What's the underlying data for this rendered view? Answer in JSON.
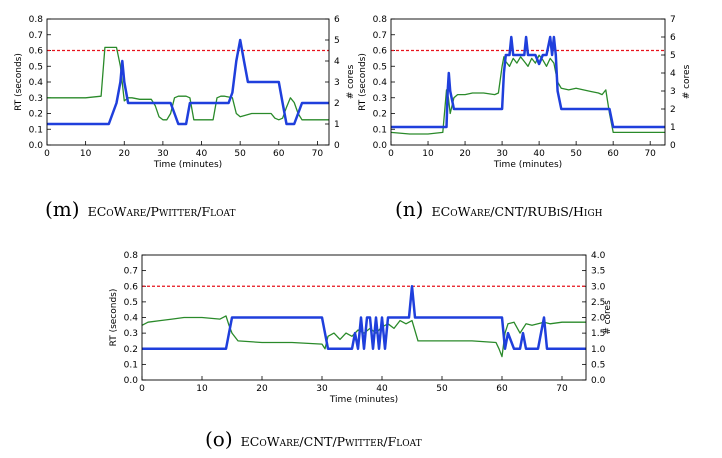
{
  "chart_data": [
    {
      "type": "line",
      "caption_letter": "(m)",
      "caption_text": "ECoWare/Pwitter/Float",
      "xlabel": "Time (minutes)",
      "ylabel": "RT (seconds)",
      "y2label": "# cores",
      "xlim": [
        0,
        73
      ],
      "ylim": [
        0,
        0.8
      ],
      "y2lim": [
        0,
        6
      ],
      "xticks": [
        "0",
        "10",
        "20",
        "30",
        "40",
        "50",
        "60",
        "70"
      ],
      "yticks": [
        "0.0",
        "0.1",
        "0.2",
        "0.3",
        "0.4",
        "0.5",
        "0.6",
        "0.7",
        "0.8"
      ],
      "y2ticks": [
        "0",
        "1",
        "2",
        "3",
        "4",
        "5",
        "6"
      ],
      "threshold": 0.6,
      "series": [
        {
          "axis": "left",
          "color": "#2a8a2a",
          "width": 1.3,
          "x": [
            0,
            10,
            14,
            15,
            16,
            18,
            19,
            20,
            21,
            22,
            24,
            27,
            28,
            29,
            30,
            31,
            32,
            33,
            34,
            36,
            37,
            38,
            40,
            43,
            44,
            45,
            46,
            48,
            49,
            50,
            53,
            56,
            58,
            59,
            60,
            61,
            62,
            63,
            64,
            65,
            66,
            70,
            73
          ],
          "y": [
            0.3,
            0.3,
            0.31,
            0.62,
            0.62,
            0.62,
            0.5,
            0.28,
            0.3,
            0.3,
            0.29,
            0.29,
            0.25,
            0.18,
            0.16,
            0.16,
            0.2,
            0.3,
            0.31,
            0.31,
            0.3,
            0.16,
            0.16,
            0.16,
            0.3,
            0.31,
            0.31,
            0.3,
            0.2,
            0.18,
            0.2,
            0.2,
            0.2,
            0.17,
            0.16,
            0.17,
            0.24,
            0.3,
            0.27,
            0.2,
            0.16,
            0.16,
            0.16
          ]
        },
        {
          "axis": "right",
          "color": "#1f3fdc",
          "width": 2.5,
          "x": [
            0,
            16,
            18,
            19,
            19.5,
            20,
            21,
            31,
            32,
            33,
            34,
            35,
            36,
            37,
            45,
            47,
            48,
            49,
            50,
            51,
            52,
            53,
            60,
            61,
            62,
            63,
            64,
            65,
            66,
            73
          ],
          "y": [
            1,
            1,
            2,
            3,
            4,
            3,
            2,
            2,
            2,
            1.5,
            1,
            1,
            1,
            2,
            2,
            2,
            2.5,
            4,
            5,
            4,
            3,
            3,
            3,
            2,
            1,
            1,
            1,
            1.5,
            2,
            2
          ]
        }
      ]
    },
    {
      "type": "line",
      "caption_letter": "(n)",
      "caption_text": "ECoWare/CNT/RUBiS/High",
      "xlabel": "Time (minutes)",
      "ylabel": "RT (seconds)",
      "y2label": "# cores",
      "xlim": [
        0,
        74
      ],
      "ylim": [
        0,
        0.8
      ],
      "y2lim": [
        0,
        7
      ],
      "xticks": [
        "0",
        "10",
        "20",
        "30",
        "40",
        "50",
        "60",
        "70"
      ],
      "yticks": [
        "0.0",
        "0.1",
        "0.2",
        "0.3",
        "0.4",
        "0.5",
        "0.6",
        "0.7",
        "0.8"
      ],
      "y2ticks": [
        "0",
        "1",
        "2",
        "3",
        "4",
        "5",
        "6",
        "7"
      ],
      "threshold": 0.6,
      "series": [
        {
          "axis": "left",
          "color": "#2a8a2a",
          "width": 1.3,
          "x": [
            0,
            5,
            10,
            14,
            15,
            15.5,
            16,
            17,
            18,
            20,
            22,
            25,
            28,
            29,
            30,
            30.5,
            31,
            32,
            33,
            34,
            35,
            36,
            37,
            38,
            39,
            40,
            41,
            42,
            43,
            44,
            45,
            46,
            48,
            50,
            52,
            54,
            56,
            57,
            58,
            59,
            60,
            62,
            66,
            70,
            74
          ],
          "y": [
            0.08,
            0.07,
            0.07,
            0.08,
            0.35,
            0.3,
            0.2,
            0.3,
            0.32,
            0.32,
            0.33,
            0.33,
            0.32,
            0.33,
            0.5,
            0.56,
            0.53,
            0.5,
            0.55,
            0.52,
            0.56,
            0.53,
            0.5,
            0.55,
            0.52,
            0.57,
            0.54,
            0.5,
            0.55,
            0.52,
            0.4,
            0.36,
            0.35,
            0.36,
            0.35,
            0.34,
            0.33,
            0.32,
            0.35,
            0.2,
            0.08,
            0.08,
            0.08,
            0.08,
            0.08
          ]
        },
        {
          "axis": "right",
          "color": "#1f3fdc",
          "width": 2.5,
          "x": [
            0,
            15,
            15.3,
            15.6,
            16,
            17,
            17.5,
            18,
            30,
            30.5,
            31,
            32,
            32.5,
            33,
            34,
            35,
            36,
            36.5,
            37,
            38,
            39,
            40,
            41,
            41.5,
            42,
            43,
            43.5,
            44,
            44.5,
            45,
            46,
            58,
            59,
            60,
            74
          ],
          "y": [
            1,
            1,
            3,
            4,
            3,
            2,
            2,
            2,
            2,
            4,
            5,
            5,
            6,
            5,
            5,
            5,
            5,
            6,
            5,
            5,
            5,
            4.5,
            5,
            5,
            5,
            6,
            5,
            6,
            5,
            3,
            2,
            2,
            2,
            1,
            1
          ]
        }
      ]
    },
    {
      "type": "line",
      "caption_letter": "(o)",
      "caption_text": "ECoWare/CNT/Pwitter/Float",
      "xlabel": "Time (minutes)",
      "ylabel": "RT (seconds)",
      "y2label": "# cores",
      "xlim": [
        0,
        74
      ],
      "ylim": [
        0,
        0.8
      ],
      "y2lim": [
        0,
        4
      ],
      "xticks": [
        "0",
        "10",
        "20",
        "30",
        "40",
        "50",
        "60",
        "70"
      ],
      "yticks": [
        "0.0",
        "0.1",
        "0.2",
        "0.3",
        "0.4",
        "0.5",
        "0.6",
        "0.7",
        "0.8"
      ],
      "y2ticks": [
        "0.0",
        "0.5",
        "1.0",
        "1.5",
        "2.0",
        "2.5",
        "3.0",
        "3.5",
        "4.0"
      ],
      "threshold": 0.6,
      "series": [
        {
          "axis": "left",
          "color": "#2a8a2a",
          "width": 1.3,
          "x": [
            0,
            1,
            3,
            5,
            7,
            10,
            13,
            14,
            14.5,
            15,
            16,
            20,
            25,
            30,
            30.5,
            31,
            32,
            33,
            34,
            35,
            36,
            37,
            38,
            39,
            40,
            41,
            42,
            43,
            44,
            45,
            46,
            48,
            50,
            55,
            59,
            59.5,
            60,
            60.5,
            61,
            62,
            63,
            64,
            65,
            66,
            67,
            68,
            70,
            74
          ],
          "y": [
            0.35,
            0.37,
            0.38,
            0.39,
            0.4,
            0.4,
            0.39,
            0.41,
            0.35,
            0.3,
            0.25,
            0.24,
            0.24,
            0.23,
            0.2,
            0.28,
            0.3,
            0.26,
            0.3,
            0.28,
            0.32,
            0.3,
            0.33,
            0.3,
            0.34,
            0.36,
            0.33,
            0.38,
            0.36,
            0.38,
            0.25,
            0.25,
            0.25,
            0.25,
            0.24,
            0.2,
            0.15,
            0.3,
            0.36,
            0.37,
            0.3,
            0.36,
            0.35,
            0.36,
            0.37,
            0.36,
            0.37,
            0.37
          ]
        },
        {
          "axis": "right",
          "color": "#1f3fdc",
          "width": 2.5,
          "x": [
            0,
            14,
            15,
            30,
            31,
            35,
            35.5,
            36,
            36.5,
            37,
            37.5,
            38,
            38.5,
            39,
            39.5,
            40,
            40.5,
            41,
            44,
            44.5,
            45,
            45.5,
            46,
            60,
            60.5,
            61,
            62,
            63,
            63.5,
            64,
            65,
            66,
            66.5,
            67,
            67.5,
            68,
            74
          ],
          "y": [
            1,
            1,
            2,
            2,
            1,
            1,
            1.5,
            1,
            2,
            1,
            2,
            2,
            1,
            2,
            1,
            2,
            1,
            2,
            2,
            2,
            3,
            2,
            2,
            2,
            1,
            1.5,
            1,
            1,
            1.5,
            1,
            1,
            1,
            1.5,
            2,
            1,
            1,
            1
          ]
        }
      ]
    }
  ]
}
